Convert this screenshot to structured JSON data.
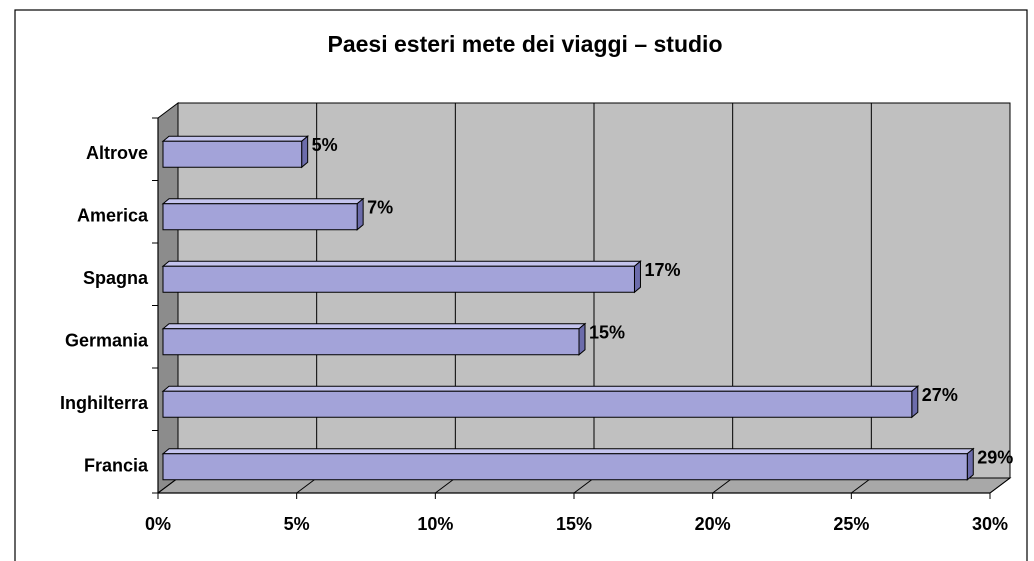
{
  "chart_data": {
    "type": "bar3d_horizontal",
    "title": "Paesi esteri mete dei viaggi – studio",
    "categories": [
      "Altrove",
      "America",
      "Spagna",
      "Germania",
      "Inghilterra",
      "Francia"
    ],
    "values": [
      5,
      7,
      17,
      15,
      27,
      29
    ],
    "value_labels": [
      "5%",
      "7%",
      "17%",
      "15%",
      "27%",
      "29%"
    ],
    "color": "#a3a3d9",
    "xlim": [
      0,
      30
    ],
    "xticks": [
      {
        "value": 0,
        "label": "0%"
      },
      {
        "value": 5,
        "label": "5%"
      },
      {
        "value": 10,
        "label": "10%"
      },
      {
        "value": 15,
        "label": "15%"
      },
      {
        "value": 20,
        "label": "20%"
      },
      {
        "value": 25,
        "label": "25%"
      },
      {
        "value": 30,
        "label": "30%"
      }
    ],
    "grid": true
  }
}
